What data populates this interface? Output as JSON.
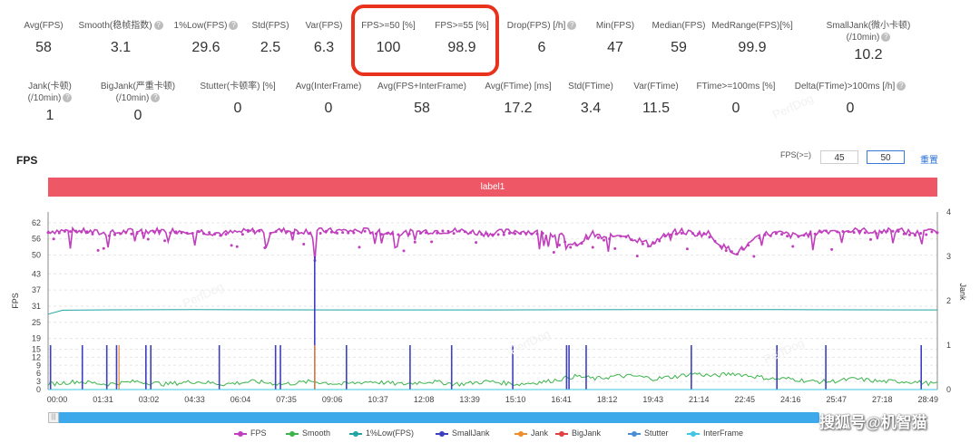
{
  "stats_row1": [
    {
      "label": "Avg(FPS)",
      "value": "58",
      "help": false
    },
    {
      "label": "Smooth(稳帧指数)",
      "value": "3.1",
      "help": true
    },
    {
      "label": "1%Low(FPS)",
      "value": "29.6",
      "help": true
    },
    {
      "label": "Std(FPS)",
      "value": "2.5",
      "help": false
    },
    {
      "label": "Var(FPS)",
      "value": "6.3",
      "help": false
    },
    {
      "label": "FPS>=50 [%]",
      "value": "100",
      "help": false
    },
    {
      "label": "FPS>=55 [%]",
      "value": "98.9",
      "help": false
    },
    {
      "label": "Drop(FPS) [/h]",
      "value": "6",
      "help": true
    },
    {
      "label": "Min(FPS)",
      "value": "47",
      "help": false
    },
    {
      "label": "Median(FPS)",
      "value": "59",
      "help": false
    },
    {
      "label": "MedRange(FPS)[%]",
      "value": "99.9",
      "help": false
    },
    {
      "label": "SmallJank(微小卡顿)",
      "label2": "(/10min)",
      "value": "10.2",
      "help": true
    }
  ],
  "stats_row2": [
    {
      "label": "Jank(卡顿)",
      "label2": "(/10min)",
      "value": "1",
      "help": true
    },
    {
      "label": "BigJank(严重卡顿)",
      "label2": "(/10min)",
      "value": "0",
      "help": true
    },
    {
      "label": "Stutter(卡顿率) [%]",
      "value": "0",
      "help": false
    },
    {
      "label": "Avg(InterFrame)",
      "value": "0",
      "help": false
    },
    {
      "label": "Avg(FPS+InterFrame)",
      "value": "58",
      "help": false
    },
    {
      "label": "Avg(FTime) [ms]",
      "value": "17.2",
      "help": false
    },
    {
      "label": "Std(FTime)",
      "value": "3.4",
      "help": false
    },
    {
      "label": "Var(FTime)",
      "value": "11.5",
      "help": false
    },
    {
      "label": "FTime>=100ms [%]",
      "value": "0",
      "help": false
    },
    {
      "label": "Delta(FTime)>100ms [/h]",
      "value": "0",
      "help": true
    }
  ],
  "help_glyph": "?",
  "section_title": "FPS",
  "fps_threshold": {
    "label": "FPS(>=)",
    "value1": "45",
    "value2": "50",
    "reset": "重置"
  },
  "label_bar": "label1",
  "watermark_text": "PerfDog",
  "credit": "搜狐号@机智猫",
  "colors": {
    "FPS": "#c03fbd",
    "Smooth": "#3cb44b",
    "1%Low(FPS)": "#1fa3a3",
    "SmallJank": "#3d3fc0",
    "Jank": "#f08c28",
    "BigJank": "#e04040",
    "Stutter": "#4a8ed8",
    "InterFrame": "#3ec7e6",
    "label_bar": "#ee5765",
    "highlight": "#e8321c",
    "slider": "#3da8ea"
  },
  "chart_data": {
    "type": "line",
    "ylabel": "FPS",
    "y2label": "Jank",
    "yticks": [
      0,
      3,
      6,
      9,
      12,
      15,
      19,
      25,
      31,
      37,
      43,
      50,
      56,
      62
    ],
    "ylim": [
      0,
      66
    ],
    "y2ticks": [
      0,
      1,
      2,
      3,
      4
    ],
    "y2lim": [
      0,
      4
    ],
    "xticks": [
      "00:00",
      "01:31",
      "03:02",
      "04:33",
      "06:04",
      "07:35",
      "09:06",
      "10:37",
      "12:08",
      "13:39",
      "15:10",
      "16:41",
      "18:12",
      "19:43",
      "21:14",
      "22:45",
      "24:16",
      "25:47",
      "27:18",
      "28:49"
    ],
    "duration_sec": 1818,
    "series": [
      {
        "name": "FPS",
        "axis": "left",
        "points": [
          [
            0,
            59
          ],
          [
            60,
            59
          ],
          [
            120,
            58
          ],
          [
            180,
            59
          ],
          [
            240,
            59
          ],
          [
            300,
            59
          ],
          [
            360,
            58
          ],
          [
            420,
            59
          ],
          [
            480,
            59
          ],
          [
            540,
            59
          ],
          [
            545,
            47
          ],
          [
            550,
            59
          ],
          [
            600,
            59
          ],
          [
            660,
            59
          ],
          [
            720,
            58
          ],
          [
            780,
            59
          ],
          [
            840,
            59
          ],
          [
            900,
            58
          ],
          [
            960,
            59
          ],
          [
            1020,
            58
          ],
          [
            1050,
            57
          ],
          [
            1070,
            53
          ],
          [
            1090,
            55
          ],
          [
            1110,
            58
          ],
          [
            1140,
            56
          ],
          [
            1170,
            58
          ],
          [
            1200,
            56
          ],
          [
            1230,
            54
          ],
          [
            1260,
            57
          ],
          [
            1290,
            59
          ],
          [
            1320,
            58
          ],
          [
            1350,
            58
          ],
          [
            1380,
            53
          ],
          [
            1410,
            51
          ],
          [
            1440,
            55
          ],
          [
            1470,
            58
          ],
          [
            1500,
            58
          ],
          [
            1530,
            57
          ],
          [
            1560,
            58
          ],
          [
            1590,
            59
          ],
          [
            1620,
            59
          ],
          [
            1650,
            59
          ],
          [
            1680,
            59
          ],
          [
            1710,
            59
          ],
          [
            1740,
            59
          ],
          [
            1780,
            58
          ],
          [
            1818,
            59
          ]
        ]
      },
      {
        "name": "Smooth",
        "axis": "left",
        "points": [
          [
            0,
            2
          ],
          [
            60,
            3
          ],
          [
            120,
            2
          ],
          [
            180,
            3
          ],
          [
            240,
            2
          ],
          [
            300,
            3
          ],
          [
            360,
            2
          ],
          [
            420,
            3
          ],
          [
            480,
            2
          ],
          [
            540,
            3
          ],
          [
            600,
            2
          ],
          [
            660,
            3
          ],
          [
            720,
            2
          ],
          [
            780,
            3
          ],
          [
            840,
            2
          ],
          [
            900,
            3
          ],
          [
            960,
            2
          ],
          [
            1020,
            3
          ],
          [
            1050,
            4
          ],
          [
            1080,
            5
          ],
          [
            1120,
            4
          ],
          [
            1160,
            5
          ],
          [
            1200,
            5
          ],
          [
            1240,
            4
          ],
          [
            1290,
            5
          ],
          [
            1320,
            6
          ],
          [
            1360,
            5
          ],
          [
            1400,
            6
          ],
          [
            1440,
            5
          ],
          [
            1480,
            4
          ],
          [
            1520,
            4
          ],
          [
            1560,
            3
          ],
          [
            1600,
            3
          ],
          [
            1650,
            4
          ],
          [
            1700,
            3
          ],
          [
            1760,
            3
          ],
          [
            1818,
            2
          ]
        ]
      },
      {
        "name": "1%Low(FPS)",
        "axis": "left",
        "points": [
          [
            0,
            28
          ],
          [
            30,
            29.5
          ],
          [
            100,
            29.6
          ],
          [
            300,
            29.7
          ],
          [
            600,
            29.6
          ],
          [
            900,
            29.6
          ],
          [
            1200,
            29.7
          ],
          [
            1500,
            29.7
          ],
          [
            1818,
            29.6
          ]
        ]
      },
      {
        "name": "SmallJank",
        "axis": "right",
        "spikes": [
          [
            5,
            1
          ],
          [
            70,
            1
          ],
          [
            120,
            1
          ],
          [
            140,
            1
          ],
          [
            200,
            1
          ],
          [
            210,
            1
          ],
          [
            350,
            1
          ],
          [
            465,
            1
          ],
          [
            475,
            1
          ],
          [
            545,
            3
          ],
          [
            610,
            1
          ],
          [
            740,
            1
          ],
          [
            825,
            1
          ],
          [
            950,
            1
          ],
          [
            1060,
            1
          ],
          [
            1065,
            1
          ],
          [
            1100,
            1
          ],
          [
            1315,
            1
          ],
          [
            1490,
            1
          ],
          [
            1590,
            1
          ],
          [
            1785,
            1
          ]
        ]
      },
      {
        "name": "Jank",
        "axis": "right",
        "spikes": [
          [
            145,
            1
          ],
          [
            545,
            1
          ]
        ]
      },
      {
        "name": "BigJank",
        "axis": "right",
        "spikes": []
      },
      {
        "name": "Stutter",
        "axis": "right",
        "points": []
      },
      {
        "name": "InterFrame",
        "axis": "left",
        "points": [
          [
            0,
            0
          ],
          [
            1818,
            0
          ]
        ]
      }
    ],
    "legend_position": "bottom"
  }
}
